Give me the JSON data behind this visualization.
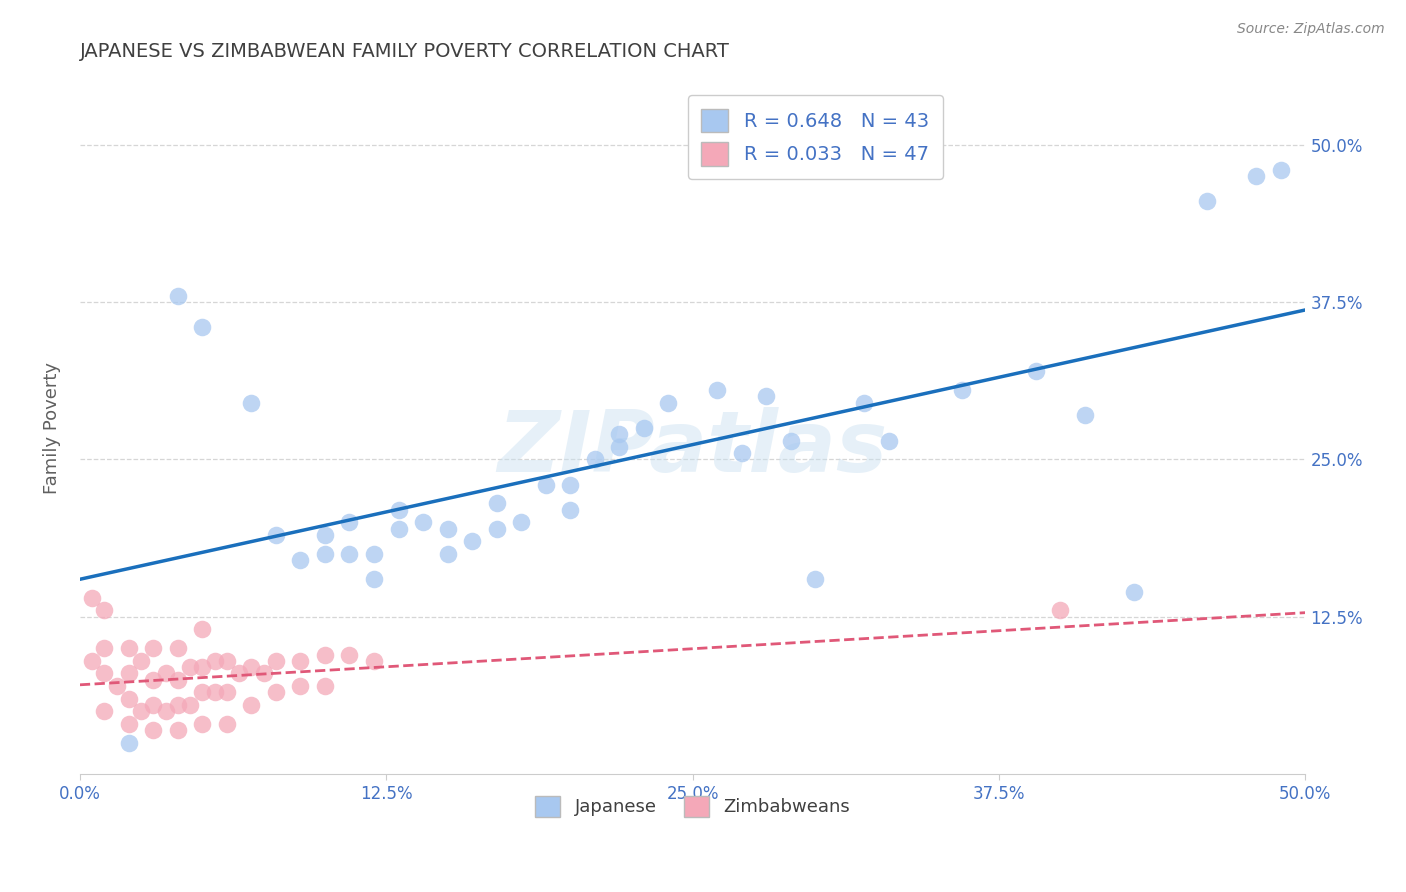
{
  "title": "JAPANESE VS ZIMBABWEAN FAMILY POVERTY CORRELATION CHART",
  "source": "Source: ZipAtlas.com",
  "ylabel": "Family Poverty",
  "xlim": [
    0.0,
    0.5
  ],
  "ylim": [
    0.0,
    0.55
  ],
  "xtick_vals": [
    0.0,
    0.125,
    0.25,
    0.375,
    0.5
  ],
  "xtick_labels": [
    "0.0%",
    "12.5%",
    "25.0%",
    "37.5%",
    "50.0%"
  ],
  "ytick_vals": [
    0.125,
    0.25,
    0.375,
    0.5
  ],
  "ytick_labels": [
    "12.5%",
    "25.0%",
    "37.5%",
    "50.0%"
  ],
  "japanese_color": "#a8c8f0",
  "zimbabwean_color": "#f4a8b8",
  "japanese_line_color": "#1a6fbc",
  "zimbabwean_line_color": "#e05878",
  "japanese_R": 0.648,
  "japanese_N": 43,
  "zimbabwean_R": 0.033,
  "zimbabwean_N": 47,
  "legend_label_japanese": "Japanese",
  "legend_label_zimbabwean": "Zimbabweans",
  "watermark": "ZIPatlas",
  "background_color": "#ffffff",
  "grid_color": "#cccccc",
  "title_color": "#404040",
  "axis_label_color": "#606060",
  "tick_color": "#4472c4",
  "source_color": "#888888",
  "japanese_x": [
    0.02,
    0.04,
    0.05,
    0.07,
    0.08,
    0.09,
    0.1,
    0.1,
    0.11,
    0.11,
    0.12,
    0.12,
    0.13,
    0.13,
    0.14,
    0.15,
    0.15,
    0.16,
    0.17,
    0.17,
    0.18,
    0.19,
    0.2,
    0.2,
    0.21,
    0.22,
    0.22,
    0.23,
    0.24,
    0.26,
    0.27,
    0.28,
    0.29,
    0.3,
    0.32,
    0.33,
    0.36,
    0.39,
    0.41,
    0.43,
    0.46,
    0.48,
    0.49
  ],
  "japanese_y": [
    0.025,
    0.38,
    0.355,
    0.295,
    0.19,
    0.17,
    0.175,
    0.19,
    0.175,
    0.2,
    0.155,
    0.175,
    0.195,
    0.21,
    0.2,
    0.175,
    0.195,
    0.185,
    0.195,
    0.215,
    0.2,
    0.23,
    0.21,
    0.23,
    0.25,
    0.26,
    0.27,
    0.275,
    0.295,
    0.305,
    0.255,
    0.3,
    0.265,
    0.155,
    0.295,
    0.265,
    0.305,
    0.32,
    0.285,
    0.145,
    0.455,
    0.475,
    0.48
  ],
  "zimbabwean_x": [
    0.005,
    0.005,
    0.01,
    0.01,
    0.01,
    0.01,
    0.015,
    0.02,
    0.02,
    0.02,
    0.02,
    0.025,
    0.025,
    0.03,
    0.03,
    0.03,
    0.03,
    0.035,
    0.035,
    0.04,
    0.04,
    0.04,
    0.04,
    0.045,
    0.045,
    0.05,
    0.05,
    0.05,
    0.05,
    0.055,
    0.055,
    0.06,
    0.06,
    0.06,
    0.065,
    0.07,
    0.07,
    0.075,
    0.08,
    0.08,
    0.09,
    0.09,
    0.1,
    0.1,
    0.11,
    0.4,
    0.12
  ],
  "zimbabwean_y": [
    0.14,
    0.09,
    0.05,
    0.08,
    0.1,
    0.13,
    0.07,
    0.04,
    0.06,
    0.08,
    0.1,
    0.05,
    0.09,
    0.035,
    0.055,
    0.075,
    0.1,
    0.05,
    0.08,
    0.035,
    0.055,
    0.075,
    0.1,
    0.055,
    0.085,
    0.04,
    0.065,
    0.085,
    0.115,
    0.065,
    0.09,
    0.04,
    0.065,
    0.09,
    0.08,
    0.055,
    0.085,
    0.08,
    0.065,
    0.09,
    0.07,
    0.09,
    0.07,
    0.095,
    0.095,
    0.13,
    0.09
  ]
}
